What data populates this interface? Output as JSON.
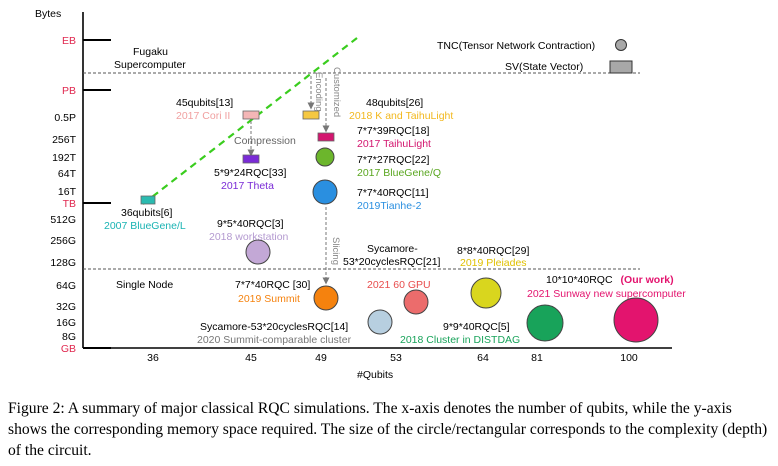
{
  "chart_data": {
    "type": "scatter",
    "title": "",
    "xlabel": "#Qubits",
    "ylabel": "Bytes",
    "x_ticks": [
      "36",
      "45",
      "49",
      "53",
      "64",
      "81",
      "100"
    ],
    "y_ticks": [
      {
        "label": "EB",
        "color": "#e0284f"
      },
      {
        "label": "PB",
        "color": "#e0284f"
      },
      {
        "label": "0.5P",
        "color": "#000000"
      },
      {
        "label": "256T",
        "color": "#000000"
      },
      {
        "label": "192T",
        "color": "#000000"
      },
      {
        "label": "64T",
        "color": "#000000"
      },
      {
        "label": "16T",
        "color": "#000000"
      },
      {
        "label": "TB",
        "color": "#e0284f"
      },
      {
        "label": "512G",
        "color": "#000000"
      },
      {
        "label": "256G",
        "color": "#000000"
      },
      {
        "label": "128G",
        "color": "#000000"
      },
      {
        "label": "64G",
        "color": "#000000"
      },
      {
        "label": "32G",
        "color": "#000000"
      },
      {
        "label": "16G",
        "color": "#000000"
      },
      {
        "label": "8G",
        "color": "#000000"
      },
      {
        "label": "GB",
        "color": "#e0284f"
      }
    ],
    "reference_lines": [
      {
        "label": "Fugaku\nSupercomputer",
        "y": "PB (approx.)"
      },
      {
        "label": "Single Node",
        "y": "128G (approx.)"
      }
    ],
    "legend": [
      {
        "label": "TNC(Tensor Network Contraction)",
        "shape": "circle"
      },
      {
        "label": "SV(State Vector)",
        "shape": "rect"
      }
    ],
    "legend_position": "top-right",
    "points": [
      {
        "qubits": 36,
        "memory": "TB",
        "shape": "rect",
        "label": "36qubits[6]",
        "sublabel": "2007 BlueGene/L",
        "color": "#2bbbb0",
        "sublabel_color": "#1ab3b3"
      },
      {
        "qubits": 45,
        "memory": "0.5P",
        "shape": "rect",
        "label": "45qubits[13]",
        "sublabel": "2017 Cori II",
        "color": "#f4b6b6",
        "sublabel_color": "#f0a0a0"
      },
      {
        "qubits": 45,
        "memory": "192T",
        "shape": "rect",
        "label": "5*9*24RQC[33]",
        "sublabel": "2017 Theta",
        "color": "#7a2bd6",
        "sublabel_color": "#7a2bd6"
      },
      {
        "qubits": 48,
        "memory": "0.5P",
        "shape": "rect",
        "label": "48qubits[26]",
        "sublabel": "2018 K and TaihuLight",
        "color": "#f5c842",
        "sublabel_color": "#f2b81e"
      },
      {
        "qubits": 49,
        "memory": "256T",
        "shape": "rect",
        "label": "7*7*39RQC[18]",
        "sublabel": "2017 TaihuLight",
        "color": "#d3166f",
        "sublabel_color": "#d3166f"
      },
      {
        "qubits": 49,
        "memory": "192T",
        "shape": "circle",
        "label": "7*7*27RQC[22]",
        "sublabel": "2017 BlueGene/Q",
        "color": "#6cb62c",
        "sublabel_color": "#5aa620"
      },
      {
        "qubits": 49,
        "memory": "16T",
        "shape": "circle",
        "label": "7*7*40RQC[11]",
        "sublabel": "2019Tianhe-2",
        "color": "#2a8fe0",
        "sublabel_color": "#2a8fe0"
      },
      {
        "qubits": 45,
        "memory": "256G",
        "shape": "circle",
        "label": "9*5*40RQC[3]",
        "sublabel": "2018 workstation",
        "color": "#c3a8d6",
        "sublabel_color": "#b49ad0"
      },
      {
        "qubits": 53,
        "memory": "256G",
        "shape": "none",
        "label": "Sycamore-\n53*20cyclesRQC[21]",
        "sublabel": "",
        "color": "",
        "sublabel_color": ""
      },
      {
        "qubits": 64,
        "memory": "64G",
        "shape": "circle",
        "label": "8*8*40RQC[29]",
        "sublabel": "2019 Pleiades",
        "color": "#d9d61e",
        "sublabel_color": "#e0c000"
      },
      {
        "qubits": 49,
        "memory": "64G",
        "shape": "circle",
        "label": "7*7*40RQC [30]",
        "sublabel": "2019 Summit",
        "color": "#f5820e",
        "sublabel_color": "#f5820e"
      },
      {
        "qubits": 53,
        "memory": "32G",
        "shape": "circle",
        "label": "",
        "sublabel": "2021 60 GPU",
        "color": "#ec6c6c",
        "sublabel_color": "#e84c4c"
      },
      {
        "qubits": 53,
        "memory": "16G",
        "shape": "circle",
        "label": "Sycamore-53*20cyclesRQC[14]",
        "sublabel": "2020 Summit-comparable cluster",
        "color": "#b7cfe0",
        "sublabel_color": "#777777"
      },
      {
        "qubits": 81,
        "memory": "16G",
        "shape": "circle",
        "label": "9*9*40RQC[5]",
        "sublabel": "2018 Cluster in DISTDAG",
        "color": "#18a35a",
        "sublabel_color": "#18a35a"
      },
      {
        "qubits": 100,
        "memory": "16G",
        "shape": "circle",
        "label": "10*10*40RQC",
        "label_extra": "(Our work)",
        "sublabel": "2021 Sunway new supercomputer",
        "color": "#e3146e",
        "sublabel_color": "#e3146e"
      }
    ],
    "annotations": [
      {
        "text": "Compression",
        "color": "#666666"
      },
      {
        "text": "Encoding",
        "color": "#888888"
      },
      {
        "text": "Customized",
        "color": "#888888"
      },
      {
        "text": "Slicing",
        "color": "#888888"
      }
    ]
  },
  "caption": "Figure 2: A summary of major classical RQC simulations. The x-axis denotes the number of qubits, while the y-axis shows the corresponding memory space required. The size of the circle/rectangular corresponds to the complexity (depth) of the circuit."
}
